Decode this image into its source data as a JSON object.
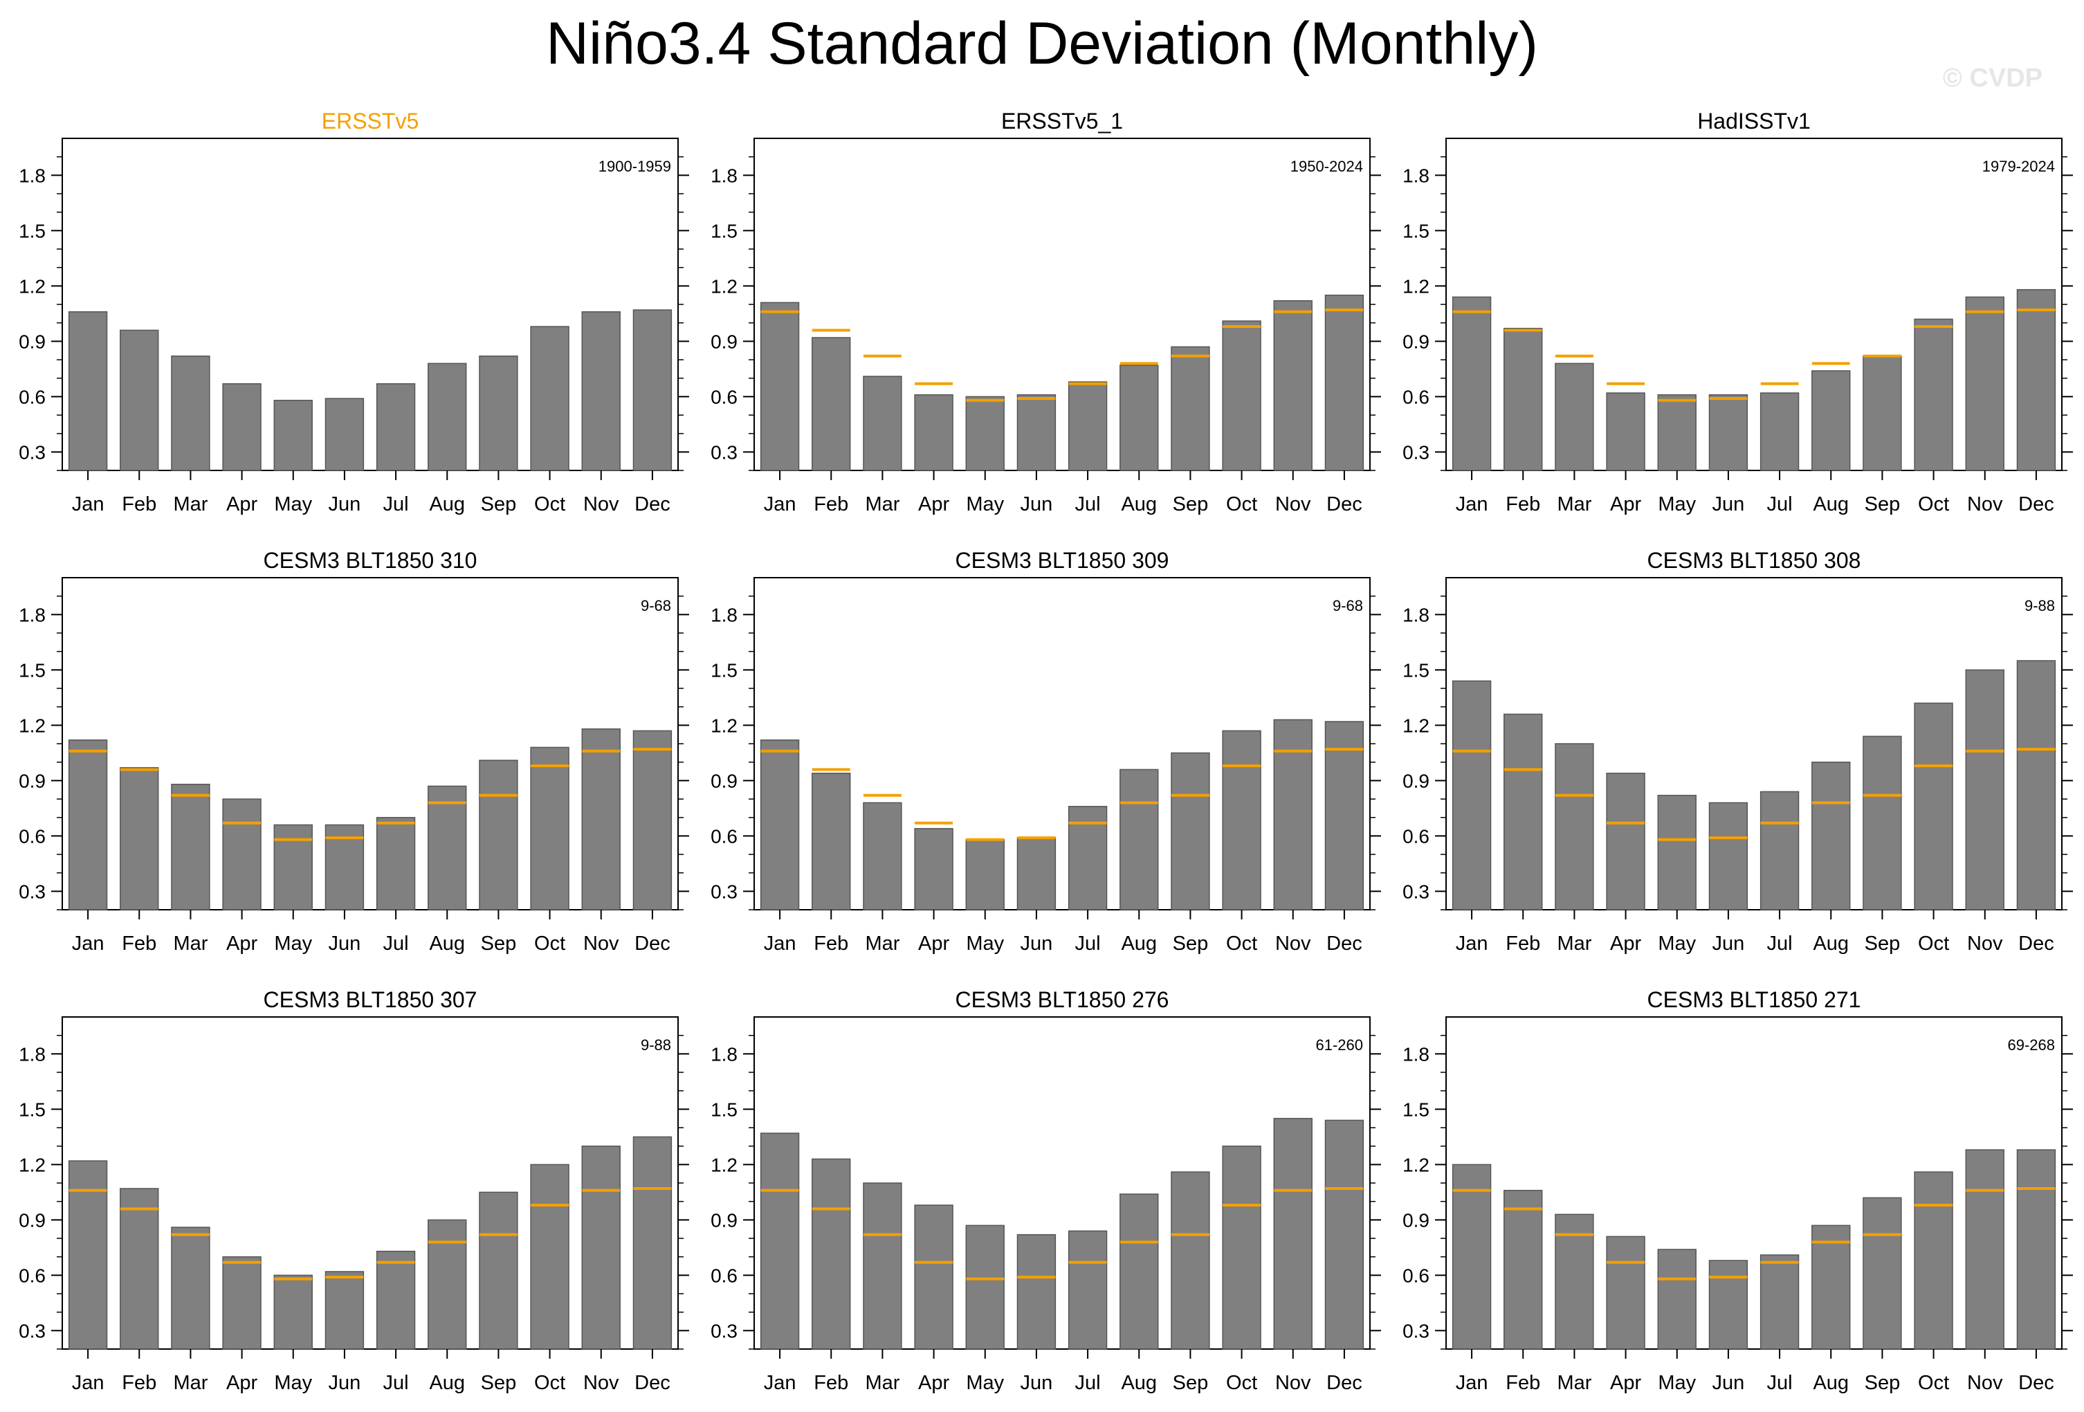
{
  "figure": {
    "title": "Niño3.4 Standard Deviation (Monthly)",
    "watermark": "© CVDP",
    "bar_color": "#808080",
    "reference_color": "#f5a000",
    "highlight_title_color": "#f5a000"
  },
  "chart_data": [
    {
      "type": "bar",
      "title": "ERSSTv5",
      "title_highlight": true,
      "period": "1900-1959",
      "categories": [
        "Jan",
        "Feb",
        "Mar",
        "Apr",
        "May",
        "Jun",
        "Jul",
        "Aug",
        "Sep",
        "Oct",
        "Nov",
        "Dec"
      ],
      "values": [
        1.06,
        0.96,
        0.82,
        0.67,
        0.58,
        0.59,
        0.67,
        0.78,
        0.82,
        0.98,
        1.06,
        1.07
      ],
      "reference": null,
      "yticks": [
        0.3,
        0.6,
        0.9,
        1.2,
        1.5,
        1.8
      ],
      "ylim": [
        0.2,
        2.0
      ]
    },
    {
      "type": "bar",
      "title": "ERSSTv5_1",
      "title_highlight": false,
      "period": "1950-2024",
      "categories": [
        "Jan",
        "Feb",
        "Mar",
        "Apr",
        "May",
        "Jun",
        "Jul",
        "Aug",
        "Sep",
        "Oct",
        "Nov",
        "Dec"
      ],
      "values": [
        1.11,
        0.92,
        0.71,
        0.61,
        0.6,
        0.61,
        0.68,
        0.77,
        0.87,
        1.01,
        1.12,
        1.15
      ],
      "reference": [
        1.06,
        0.96,
        0.82,
        0.67,
        0.58,
        0.59,
        0.67,
        0.78,
        0.82,
        0.98,
        1.06,
        1.07
      ],
      "yticks": [
        0.3,
        0.6,
        0.9,
        1.2,
        1.5,
        1.8
      ],
      "ylim": [
        0.2,
        2.0
      ]
    },
    {
      "type": "bar",
      "title": "HadISSTv1",
      "title_highlight": false,
      "period": "1979-2024",
      "categories": [
        "Jan",
        "Feb",
        "Mar",
        "Apr",
        "May",
        "Jun",
        "Jul",
        "Aug",
        "Sep",
        "Oct",
        "Nov",
        "Dec"
      ],
      "values": [
        1.14,
        0.97,
        0.78,
        0.62,
        0.61,
        0.61,
        0.62,
        0.74,
        0.82,
        1.02,
        1.14,
        1.18
      ],
      "reference": [
        1.06,
        0.96,
        0.82,
        0.67,
        0.58,
        0.59,
        0.67,
        0.78,
        0.82,
        0.98,
        1.06,
        1.07
      ],
      "yticks": [
        0.3,
        0.6,
        0.9,
        1.2,
        1.5,
        1.8
      ],
      "ylim": [
        0.2,
        2.0
      ]
    },
    {
      "type": "bar",
      "title": "CESM3 BLT1850 310",
      "title_highlight": false,
      "period": "9-68",
      "categories": [
        "Jan",
        "Feb",
        "Mar",
        "Apr",
        "May",
        "Jun",
        "Jul",
        "Aug",
        "Sep",
        "Oct",
        "Nov",
        "Dec"
      ],
      "values": [
        1.12,
        0.97,
        0.88,
        0.8,
        0.66,
        0.66,
        0.7,
        0.87,
        1.01,
        1.08,
        1.18,
        1.17
      ],
      "reference": [
        1.06,
        0.96,
        0.82,
        0.67,
        0.58,
        0.59,
        0.67,
        0.78,
        0.82,
        0.98,
        1.06,
        1.07
      ],
      "yticks": [
        0.3,
        0.6,
        0.9,
        1.2,
        1.5,
        1.8
      ],
      "ylim": [
        0.2,
        2.0
      ]
    },
    {
      "type": "bar",
      "title": "CESM3 BLT1850 309",
      "title_highlight": false,
      "period": "9-68",
      "categories": [
        "Jan",
        "Feb",
        "Mar",
        "Apr",
        "May",
        "Jun",
        "Jul",
        "Aug",
        "Sep",
        "Oct",
        "Nov",
        "Dec"
      ],
      "values": [
        1.12,
        0.94,
        0.78,
        0.64,
        0.58,
        0.59,
        0.76,
        0.96,
        1.05,
        1.17,
        1.23,
        1.22
      ],
      "reference": [
        1.06,
        0.96,
        0.82,
        0.67,
        0.58,
        0.59,
        0.67,
        0.78,
        0.82,
        0.98,
        1.06,
        1.07
      ],
      "yticks": [
        0.3,
        0.6,
        0.9,
        1.2,
        1.5,
        1.8
      ],
      "ylim": [
        0.2,
        2.0
      ]
    },
    {
      "type": "bar",
      "title": "CESM3 BLT1850 308",
      "title_highlight": false,
      "period": "9-88",
      "categories": [
        "Jan",
        "Feb",
        "Mar",
        "Apr",
        "May",
        "Jun",
        "Jul",
        "Aug",
        "Sep",
        "Oct",
        "Nov",
        "Dec"
      ],
      "values": [
        1.44,
        1.26,
        1.1,
        0.94,
        0.82,
        0.78,
        0.84,
        1.0,
        1.14,
        1.32,
        1.5,
        1.55
      ],
      "reference": [
        1.06,
        0.96,
        0.82,
        0.67,
        0.58,
        0.59,
        0.67,
        0.78,
        0.82,
        0.98,
        1.06,
        1.07
      ],
      "yticks": [
        0.3,
        0.6,
        0.9,
        1.2,
        1.5,
        1.8
      ],
      "ylim": [
        0.2,
        2.0
      ]
    },
    {
      "type": "bar",
      "title": "CESM3 BLT1850 307",
      "title_highlight": false,
      "period": "9-88",
      "categories": [
        "Jan",
        "Feb",
        "Mar",
        "Apr",
        "May",
        "Jun",
        "Jul",
        "Aug",
        "Sep",
        "Oct",
        "Nov",
        "Dec"
      ],
      "values": [
        1.22,
        1.07,
        0.86,
        0.7,
        0.6,
        0.62,
        0.73,
        0.9,
        1.05,
        1.2,
        1.3,
        1.35
      ],
      "reference": [
        1.06,
        0.96,
        0.82,
        0.67,
        0.58,
        0.59,
        0.67,
        0.78,
        0.82,
        0.98,
        1.06,
        1.07
      ],
      "yticks": [
        0.3,
        0.6,
        0.9,
        1.2,
        1.5,
        1.8
      ],
      "ylim": [
        0.2,
        2.0
      ]
    },
    {
      "type": "bar",
      "title": "CESM3 BLT1850 276",
      "title_highlight": false,
      "period": "61-260",
      "categories": [
        "Jan",
        "Feb",
        "Mar",
        "Apr",
        "May",
        "Jun",
        "Jul",
        "Aug",
        "Sep",
        "Oct",
        "Nov",
        "Dec"
      ],
      "values": [
        1.37,
        1.23,
        1.1,
        0.98,
        0.87,
        0.82,
        0.84,
        1.04,
        1.16,
        1.3,
        1.45,
        1.44
      ],
      "reference": [
        1.06,
        0.96,
        0.82,
        0.67,
        0.58,
        0.59,
        0.67,
        0.78,
        0.82,
        0.98,
        1.06,
        1.07
      ],
      "yticks": [
        0.3,
        0.6,
        0.9,
        1.2,
        1.5,
        1.8
      ],
      "ylim": [
        0.2,
        2.0
      ]
    },
    {
      "type": "bar",
      "title": "CESM3 BLT1850 271",
      "title_highlight": false,
      "period": "69-268",
      "categories": [
        "Jan",
        "Feb",
        "Mar",
        "Apr",
        "May",
        "Jun",
        "Jul",
        "Aug",
        "Sep",
        "Oct",
        "Nov",
        "Dec"
      ],
      "values": [
        1.2,
        1.06,
        0.93,
        0.81,
        0.74,
        0.68,
        0.71,
        0.87,
        1.02,
        1.16,
        1.28,
        1.28
      ],
      "reference": [
        1.06,
        0.96,
        0.82,
        0.67,
        0.58,
        0.59,
        0.67,
        0.78,
        0.82,
        0.98,
        1.06,
        1.07
      ],
      "yticks": [
        0.3,
        0.6,
        0.9,
        1.2,
        1.5,
        1.8
      ],
      "ylim": [
        0.2,
        2.0
      ]
    }
  ]
}
